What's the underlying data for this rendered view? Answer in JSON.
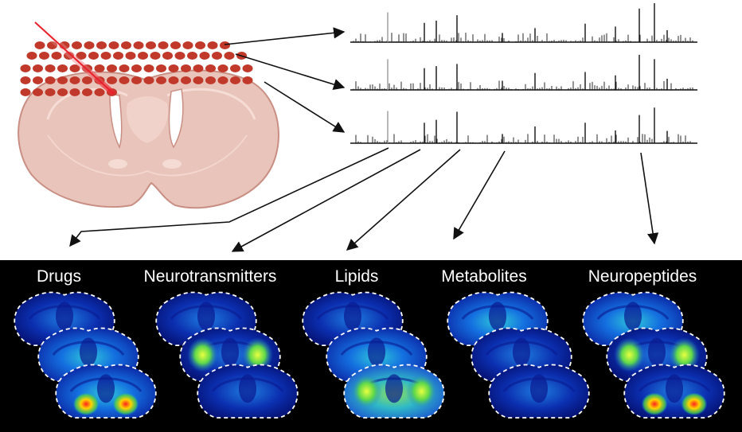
{
  "categories": [
    {
      "label": "Drugs"
    },
    {
      "label": "Neurotransmitters"
    },
    {
      "label": "Lipids"
    },
    {
      "label": "Metabolites"
    },
    {
      "label": "Neuropeptides"
    }
  ],
  "colors": {
    "tissue": "#e8c1b7",
    "tissue_edge": "#c98f84",
    "laser_spot": "#c0392b",
    "laser_beam": "#e8202a",
    "spectrum_line": "#111111",
    "panel_background": "#000000",
    "label_text": "#ffffff"
  },
  "icons": [
    "laser-beam-icon",
    "brain-section-icon",
    "mass-spectrum-icon",
    "ion-image-icon"
  ]
}
